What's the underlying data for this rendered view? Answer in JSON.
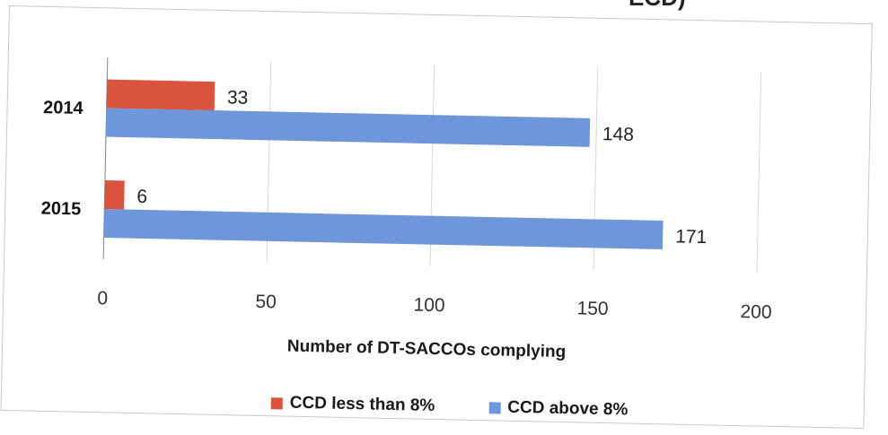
{
  "header_fragment": "ECD)",
  "chart_data": {
    "type": "bar",
    "orientation": "horizontal",
    "title": "",
    "categories": [
      "2014",
      "2015"
    ],
    "series": [
      {
        "name": "CCD less than 8%",
        "values": [
          33,
          6
        ],
        "color": "#d9533d"
      },
      {
        "name": "CCD above 8%",
        "values": [
          148,
          171
        ],
        "color": "#6f95db"
      }
    ],
    "xlabel": "Number of DT-SACCOs complying",
    "ylabel": "",
    "xlim": [
      0,
      200
    ],
    "xticks": [
      "0",
      "50",
      "100",
      "150",
      "200"
    ],
    "grid": true,
    "legend": "bottom"
  }
}
